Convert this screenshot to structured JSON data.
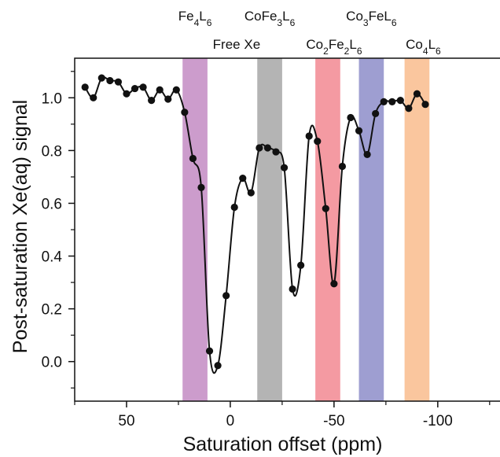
{
  "chart_data": {
    "type": "line",
    "xlabel": "Saturation offset (ppm)",
    "ylabel": "Post-saturation Xe(aq) signal",
    "x_axis_reversed": true,
    "xlim": [
      75,
      -130
    ],
    "ylim": [
      -0.15,
      1.15
    ],
    "x_ticks": [
      50,
      0,
      -50,
      -100
    ],
    "x_tick_labels": [
      "50",
      "0",
      "-50",
      "-100"
    ],
    "y_ticks": [
      0.0,
      0.2,
      0.4,
      0.6,
      0.8,
      1.0
    ],
    "y_tick_labels": [
      "0.0",
      "0.2",
      "0.4",
      "0.6",
      "0.8",
      "1.0"
    ],
    "grid": false,
    "legend": "none",
    "series": [
      {
        "color": "#111111",
        "points": [
          [
            70,
            1.04
          ],
          [
            66,
            1.0
          ],
          [
            62,
            1.075
          ],
          [
            58,
            1.065
          ],
          [
            54,
            1.06
          ],
          [
            50,
            1.015
          ],
          [
            46,
            1.035
          ],
          [
            42,
            1.04
          ],
          [
            38,
            0.99
          ],
          [
            34,
            1.03
          ],
          [
            30,
            0.995
          ],
          [
            26,
            1.03
          ],
          [
            22,
            0.945
          ],
          [
            18,
            0.77
          ],
          [
            14,
            0.66
          ],
          [
            10,
            0.04
          ],
          [
            6,
            -0.015
          ],
          [
            2,
            0.25
          ],
          [
            -2,
            0.585
          ],
          [
            -6,
            0.695
          ],
          [
            -10,
            0.64
          ],
          [
            -14,
            0.81
          ],
          [
            -18,
            0.81
          ],
          [
            -22,
            0.795
          ],
          [
            -26,
            0.735
          ],
          [
            -30,
            0.275
          ],
          [
            -34,
            0.365
          ],
          [
            -38,
            0.855
          ],
          [
            -42,
            0.835
          ],
          [
            -46,
            0.58
          ],
          [
            -50,
            0.295
          ],
          [
            -54,
            0.74
          ],
          [
            -58,
            0.925
          ],
          [
            -62,
            0.875
          ],
          [
            -66,
            0.785
          ],
          [
            -70,
            0.94
          ],
          [
            -74,
            0.985
          ],
          [
            -78,
            0.985
          ],
          [
            -82,
            0.99
          ],
          [
            -86,
            0.96
          ],
          [
            -90,
            1.015
          ],
          [
            -94,
            0.975
          ]
        ]
      }
    ],
    "bands": [
      {
        "label_html": "Fe<tspan baseline-shift='sub' font-size='12'>4</tspan>L<tspan baseline-shift='sub' font-size='12'>6</tspan>",
        "label_text": "Fe4L6",
        "x_from": 23,
        "x_to": 11,
        "color": "#b067b0",
        "label_row": 1
      },
      {
        "label_html": "Free Xe",
        "label_text": "Free Xe",
        "x_from": null,
        "x_to": null,
        "at_x": 0,
        "color": null,
        "label_row": 2
      },
      {
        "label_html": "CoFe<tspan baseline-shift='sub' font-size='12'>3</tspan>L<tspan baseline-shift='sub' font-size='12'>6</tspan>",
        "label_text": "CoFe3L6",
        "x_from": -13,
        "x_to": -25,
        "color": "#8c8c8c",
        "label_row": 1
      },
      {
        "label_html": "Co<tspan baseline-shift='sub' font-size='12'>2</tspan>Fe<tspan baseline-shift='sub' font-size='12'>2</tspan>L<tspan baseline-shift='sub' font-size='12'>6</tspan>",
        "label_text": "Co2Fe2L6",
        "x_from": -41,
        "x_to": -53,
        "color": "#ee6470",
        "label_row": 2
      },
      {
        "label_html": "Co<tspan baseline-shift='sub' font-size='12'>3</tspan>FeL<tspan baseline-shift='sub' font-size='12'>6</tspan>",
        "label_text": "Co3FeL6",
        "x_from": -62,
        "x_to": -74,
        "color": "#6a6ab8",
        "label_row": 1
      },
      {
        "label_html": "Co<tspan baseline-shift='sub' font-size='12'>4</tspan>L<tspan baseline-shift='sub' font-size='12'>6</tspan>",
        "label_text": "Co4L6",
        "x_from": -84,
        "x_to": -96,
        "color": "#f7a86a",
        "label_row": 2
      }
    ]
  }
}
